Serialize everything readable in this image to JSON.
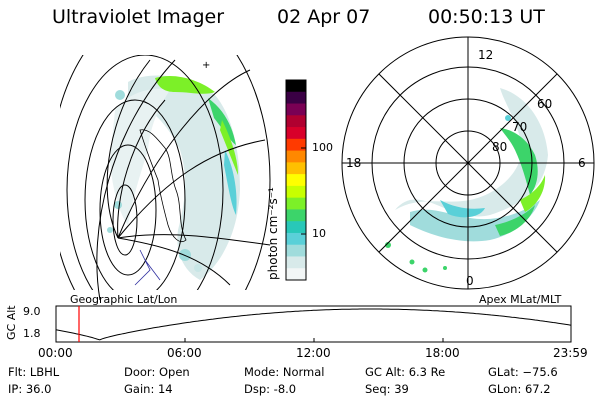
{
  "header": {
    "instrument": "Ultraviolet Imager",
    "date": "02 Apr 07",
    "time": "00:50:13 UT"
  },
  "colorbar": {
    "label": "photon cm⁻²s⁻¹",
    "ticks": [
      "100",
      "10"
    ],
    "colors": [
      "#000000",
      "#3a0044",
      "#7a0054",
      "#b00030",
      "#d8002a",
      "#ff3a00",
      "#ff8800",
      "#ffc000",
      "#ffff00",
      "#c8ff00",
      "#7cf028",
      "#3cd46a",
      "#28c8b8",
      "#5ad0d8",
      "#a0dcdc",
      "#d8eaea",
      "#f2f6f6"
    ]
  },
  "left_panel": {
    "label": "Geographic Lat/Lon"
  },
  "right_panel": {
    "label": "Apex MLat/MLT",
    "mlt_labels": [
      "12",
      "18",
      "6",
      "0"
    ],
    "mlat_labels": [
      "60",
      "70",
      "80"
    ]
  },
  "timeseries": {
    "ylabel": "GC Alt",
    "yticks": [
      "9.0",
      "1.8"
    ],
    "xticks": [
      "00:00",
      "06:00",
      "12:00",
      "18:00",
      "23:59"
    ],
    "marker_color": "#ff0000"
  },
  "info": {
    "flt": "Flt: LBHL",
    "ip": "IP: 36.0",
    "door": "Door: Open",
    "gain": "Gain: 14",
    "mode": "Mode: Normal",
    "dsp": "Dsp:    -8.0",
    "gcalt": "GC Alt: 6.3 Re",
    "seq": "Seq: 39",
    "glat": "GLat:  −75.6",
    "glon": "GLon:  67.2"
  }
}
